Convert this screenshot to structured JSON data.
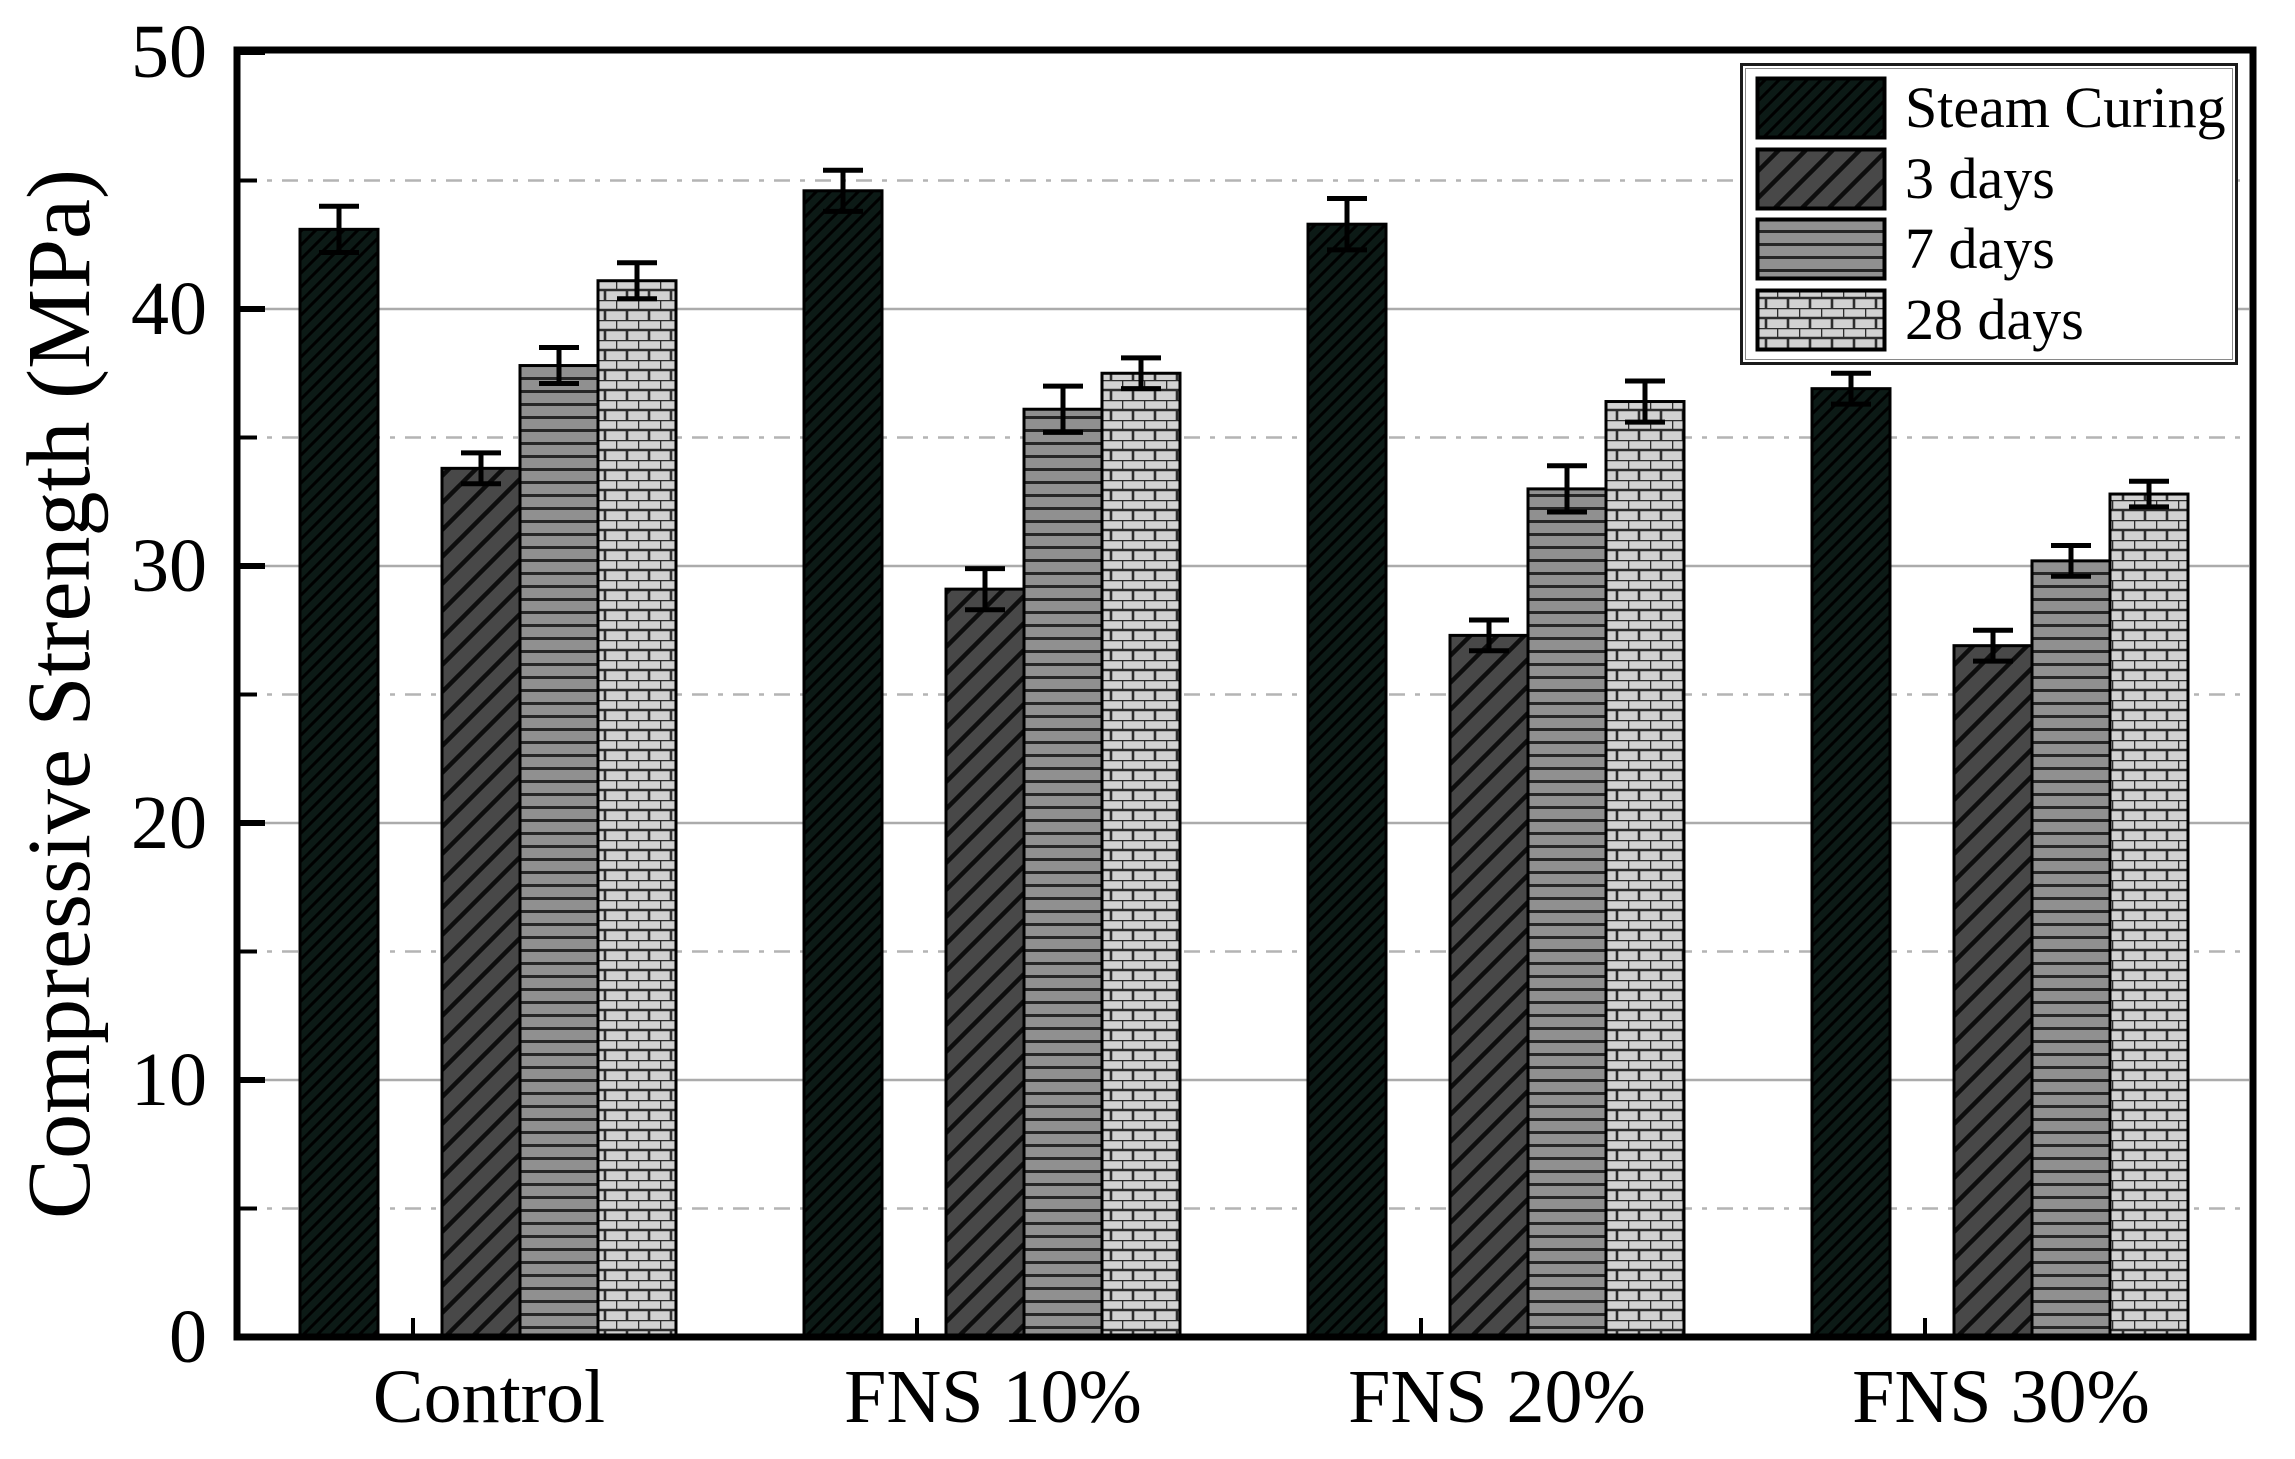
{
  "figure": {
    "background": "#ffffff",
    "frame_color": "#000000"
  },
  "chart_data": {
    "type": "bar",
    "title": "",
    "xlabel": "",
    "ylabel": "Compressive Strength (MPa)",
    "ylim": [
      0,
      50
    ],
    "yticks_major": [
      0,
      10,
      20,
      30,
      40,
      50
    ],
    "yticks_minor": [
      5,
      15,
      25,
      35,
      45
    ],
    "gridlines": {
      "solid_at": [
        10,
        20,
        30,
        40
      ],
      "dashed_at": [
        5,
        15,
        25,
        35,
        45
      ],
      "solid_color": "#ababab",
      "dashed_color": "#b4b4b4"
    },
    "legend_position": "top-right",
    "categories": [
      "Control",
      "FNS 10%",
      "FNS 20%",
      "FNS 30%"
    ],
    "series": [
      {
        "name": "Steam Curing",
        "pattern": "dense-diagonal-hatch",
        "fill": "#0c1a16",
        "hatch_color": "#000000",
        "values": [
          43.1,
          44.6,
          43.3,
          36.9
        ],
        "errors": [
          0.9,
          0.8,
          1.0,
          0.6
        ]
      },
      {
        "name": "3 days",
        "pattern": "diagonal-hatch",
        "fill": "#484848",
        "hatch_color": "#0d0d0d",
        "values": [
          33.8,
          29.1,
          27.3,
          26.9
        ],
        "errors": [
          0.6,
          0.8,
          0.6,
          0.6
        ]
      },
      {
        "name": "7 days",
        "pattern": "horizontal-lines",
        "fill": "#909090",
        "hatch_color": "#262626",
        "values": [
          37.8,
          36.1,
          33.0,
          30.2
        ],
        "errors": [
          0.7,
          0.9,
          0.9,
          0.6
        ]
      },
      {
        "name": "28 days",
        "pattern": "brick",
        "fill": "#d2d2d2",
        "hatch_color": "#2e2e2e",
        "values": [
          41.1,
          37.5,
          36.4,
          32.8
        ],
        "errors": [
          0.7,
          0.6,
          0.8,
          0.5
        ]
      }
    ],
    "error_bar_color": "#000000"
  }
}
